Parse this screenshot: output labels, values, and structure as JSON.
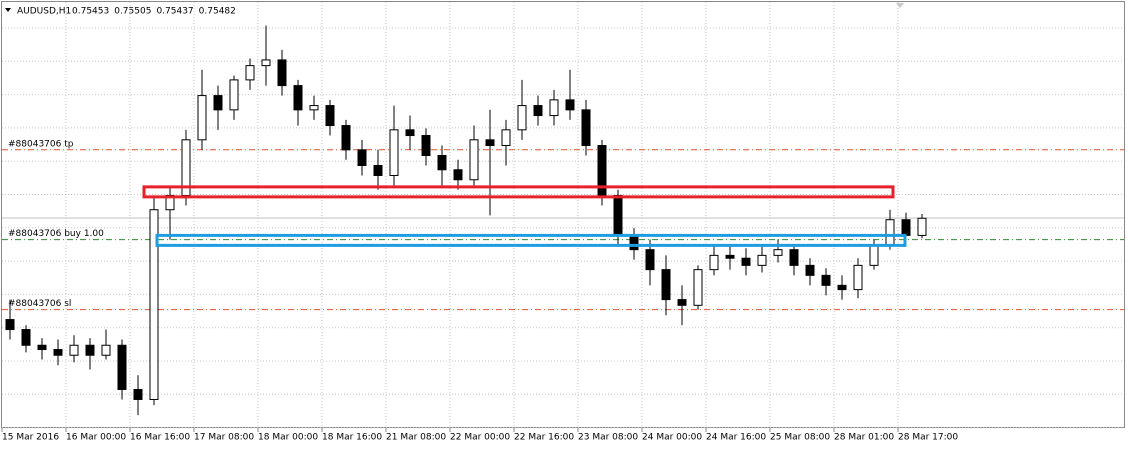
{
  "chart_data": {
    "type": "candlestick",
    "symbol": "AUDUSD,H1",
    "quote": [
      0.75453,
      0.75505,
      0.75437,
      0.75482
    ],
    "categories": [
      "15 Mar 2016",
      null,
      null,
      null,
      "16 Mar 00:00",
      null,
      null,
      null,
      "16 Mar 16:00",
      null,
      null,
      null,
      "17 Mar 08:00",
      null,
      null,
      null,
      "18 Mar 00:00",
      null,
      null,
      null,
      "18 Mar 16:00",
      null,
      null,
      null,
      "21 Mar 08:00",
      null,
      null,
      null,
      "22 Mar 00:00",
      null,
      null,
      null,
      "22 Mar 16:00",
      null,
      null,
      null,
      "23 Mar 08:00",
      null,
      null,
      null,
      "24 Mar 00:00",
      null,
      null,
      null,
      "24 Mar 16:00",
      null,
      null,
      null,
      "25 Mar 08:00",
      null,
      null,
      null,
      "28 Mar 01:00",
      null,
      null,
      null,
      "28 Mar 17:00",
      null
    ],
    "open": [
      0.7477,
      0.747,
      0.7459,
      0.7456,
      0.7452,
      0.7459,
      0.7452,
      0.7459,
      0.7428,
      0.7421,
      0.7554,
      0.7564,
      0.7603,
      0.7634,
      0.7624,
      0.7645,
      0.7655,
      0.7659,
      0.7641,
      0.7624,
      0.7627,
      0.7613,
      0.7596,
      0.7585,
      0.7578,
      0.761,
      0.7606,
      0.7592,
      0.7582,
      0.7575,
      0.7603,
      0.7599,
      0.761,
      0.7627,
      0.762,
      0.7631,
      0.7624,
      0.7599,
      0.7564,
      0.7536,
      0.7526,
      0.7512,
      0.7491,
      0.7487,
      0.7512,
      0.7522,
      0.752,
      0.7515,
      0.7522,
      0.7526,
      0.7515,
      0.7508,
      0.7501,
      0.7498,
      0.7515,
      0.7529,
      0.7547,
      0.7536
    ],
    "high": [
      0.7491,
      0.7473,
      0.7464,
      0.7463,
      0.7466,
      0.7464,
      0.747,
      0.7463,
      0.7438,
      0.7564,
      0.7571,
      0.761,
      0.7652,
      0.7641,
      0.7648,
      0.766,
      0.7683,
      0.7666,
      0.7645,
      0.7634,
      0.7631,
      0.7617,
      0.7603,
      0.7596,
      0.7627,
      0.762,
      0.7611,
      0.7599,
      0.7589,
      0.7613,
      0.7624,
      0.7617,
      0.7645,
      0.7634,
      0.7638,
      0.7652,
      0.7631,
      0.7603,
      0.7568,
      0.7541,
      0.7533,
      0.7522,
      0.7501,
      0.7515,
      0.7529,
      0.7529,
      0.7527,
      0.7529,
      0.7533,
      0.7529,
      0.752,
      0.7513,
      0.7508,
      0.752,
      0.7533,
      0.7554,
      0.7552,
      0.7551
    ],
    "low": [
      0.7463,
      0.7454,
      0.7449,
      0.7445,
      0.7447,
      0.7442,
      0.7449,
      0.7421,
      0.741,
      0.7417,
      0.7533,
      0.7557,
      0.7596,
      0.761,
      0.7617,
      0.7638,
      0.7641,
      0.7634,
      0.7613,
      0.7617,
      0.7606,
      0.7589,
      0.7578,
      0.7568,
      0.7571,
      0.7596,
      0.7585,
      0.7571,
      0.7568,
      0.7571,
      0.755,
      0.7585,
      0.7603,
      0.7613,
      0.7613,
      0.7617,
      0.7592,
      0.7557,
      0.7529,
      0.7519,
      0.7501,
      0.748,
      0.7473,
      0.7484,
      0.7508,
      0.7512,
      0.7508,
      0.751,
      0.7517,
      0.7508,
      0.7501,
      0.7494,
      0.7491,
      0.7492,
      0.7512,
      0.7526,
      0.7529,
      0.7534
    ],
    "close": [
      0.747,
      0.7459,
      0.7456,
      0.7452,
      0.7459,
      0.7452,
      0.7459,
      0.7428,
      0.7421,
      0.7554,
      0.7564,
      0.7603,
      0.7634,
      0.7624,
      0.7645,
      0.7655,
      0.7659,
      0.7641,
      0.7624,
      0.7627,
      0.7613,
      0.7596,
      0.7585,
      0.7578,
      0.761,
      0.7606,
      0.7592,
      0.7582,
      0.7575,
      0.7603,
      0.7599,
      0.761,
      0.7627,
      0.762,
      0.7631,
      0.7624,
      0.7599,
      0.7564,
      0.7536,
      0.7526,
      0.7512,
      0.7491,
      0.7487,
      0.7512,
      0.7522,
      0.752,
      0.7515,
      0.7522,
      0.7526,
      0.7515,
      0.7508,
      0.7501,
      0.7498,
      0.7515,
      0.7529,
      0.7547,
      0.7536,
      0.7548
    ],
    "ylim": [
      0.7401,
      0.7701
    ],
    "grid": true,
    "levels": [
      {
        "label": "#88043706 tp",
        "value": 0.7596,
        "color": "#e0542a"
      },
      {
        "label": "#88043706 buy 1.00",
        "value": 0.7533,
        "color": "#2e8b2e"
      },
      {
        "label": "#88043706 sl",
        "value": 0.7484,
        "color": "#e0542a"
      }
    ],
    "zones": [
      {
        "color": "#e8202a",
        "top": 0.757,
        "bottom": 0.7563
      },
      {
        "color": "#1e9ee0",
        "top": 0.7536,
        "bottom": 0.7529
      }
    ],
    "colors": {
      "up": "#ffffff",
      "down": "#000000",
      "wick": "#000000"
    }
  }
}
